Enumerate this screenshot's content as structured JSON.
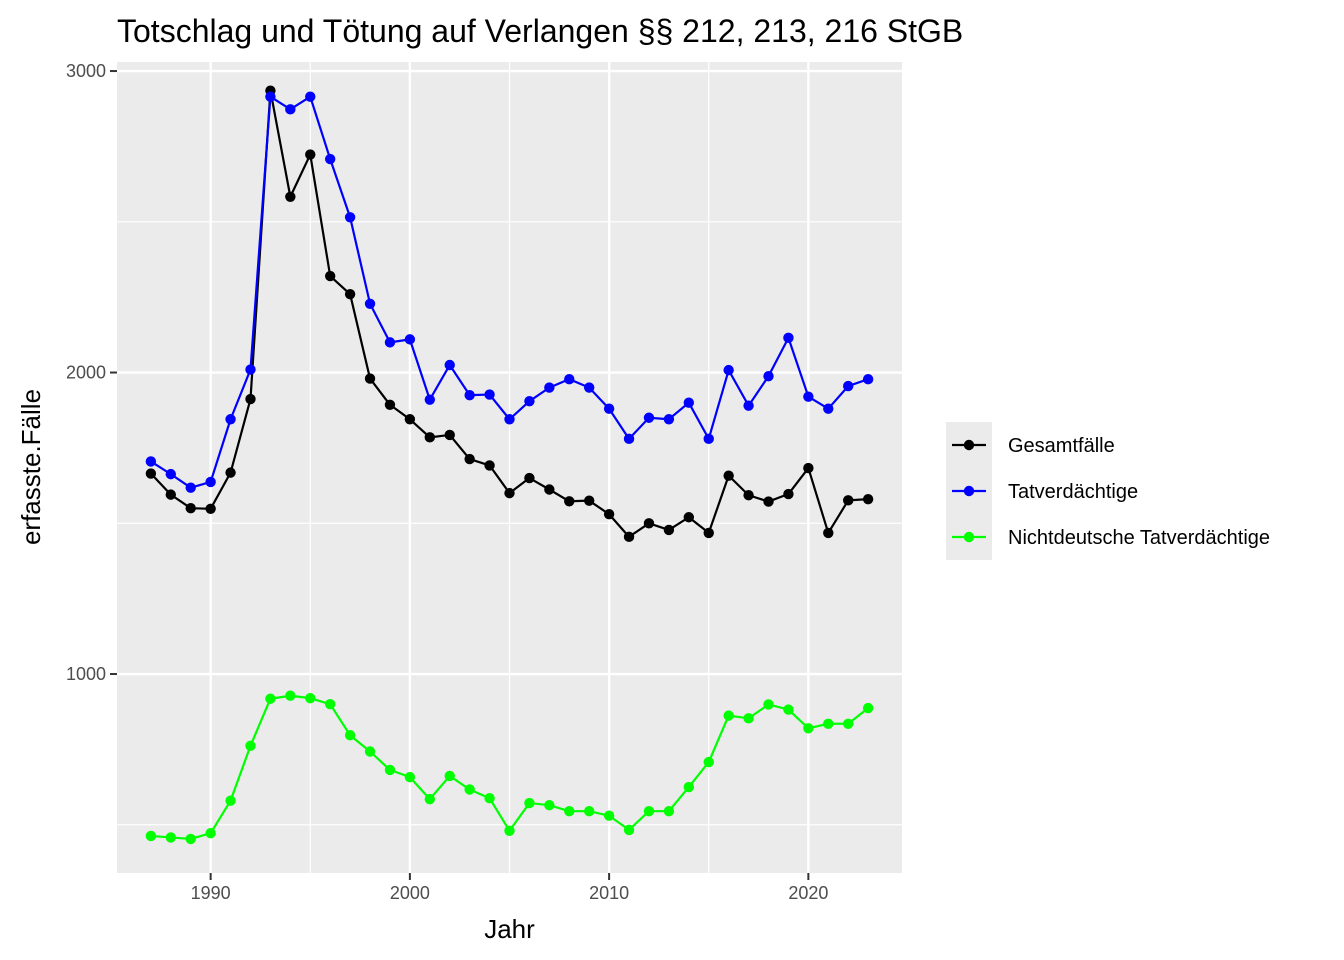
{
  "chart_data": {
    "type": "line",
    "title": "Totschlag und Tötung auf Verlangen §§ 212, 213, 216 StGB",
    "xlabel": "Jahr",
    "ylabel": "erfasste.Fälle",
    "xlim": [
      1985.3,
      2024.7
    ],
    "ylim": [
      340,
      3030
    ],
    "xticks": [
      1990,
      2000,
      2010,
      2020
    ],
    "yticks": [
      1000,
      2000,
      3000
    ],
    "grid": true,
    "legend_position": "right",
    "x": [
      1987,
      1988,
      1989,
      1990,
      1991,
      1992,
      1993,
      1994,
      1995,
      1996,
      1997,
      1998,
      1999,
      2000,
      2001,
      2002,
      2003,
      2004,
      2005,
      2006,
      2007,
      2008,
      2009,
      2010,
      2011,
      2012,
      2013,
      2014,
      2015,
      2016,
      2017,
      2018,
      2019,
      2020,
      2021,
      2022,
      2023
    ],
    "series": [
      {
        "name": "Gesamtfälle",
        "color": "#000000",
        "values": [
          1665,
          1595,
          1550,
          1548,
          1668,
          1912,
          2935,
          2583,
          2723,
          2320,
          2260,
          1980,
          1893,
          1845,
          1785,
          1793,
          1713,
          1692,
          1600,
          1650,
          1612,
          1573,
          1575,
          1530,
          1455,
          1500,
          1478,
          1520,
          1468,
          1658,
          1593,
          1572,
          1597,
          1683,
          1468,
          1576,
          1580
        ]
      },
      {
        "name": "Tatverdächtige",
        "color": "#0000ff",
        "values": [
          1705,
          1663,
          1618,
          1637,
          1845,
          2010,
          2915,
          2873,
          2915,
          2708,
          2515,
          2228,
          2100,
          2110,
          1910,
          2025,
          1925,
          1927,
          1845,
          1905,
          1950,
          1978,
          1950,
          1880,
          1780,
          1850,
          1845,
          1900,
          1780,
          2008,
          1890,
          1988,
          2115,
          1920,
          1880,
          1955,
          1978
        ]
      },
      {
        "name": "Nichtdeutsche Tatverdächtige",
        "color": "#00ff00",
        "values": [
          463,
          458,
          453,
          472,
          580,
          762,
          918,
          928,
          920,
          900,
          797,
          743,
          682,
          658,
          585,
          662,
          617,
          588,
          480,
          572,
          565,
          545,
          545,
          530,
          483,
          545,
          545,
          625,
          708,
          862,
          853,
          899,
          882,
          820,
          835,
          835,
          887
        ]
      }
    ]
  }
}
